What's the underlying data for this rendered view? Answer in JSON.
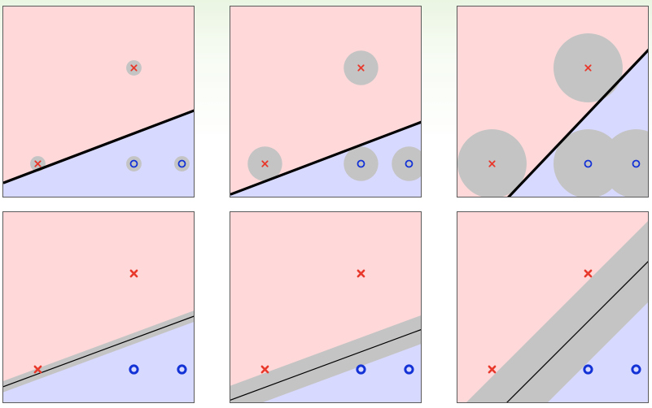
{
  "colors": {
    "class_x_region": "#ffd9d9",
    "class_o_region": "#d8d9ff",
    "margin_gray": "#c4c4c4",
    "x_marker": "#e8392c",
    "o_marker": "#1433d6",
    "boundary": "#000000"
  },
  "points": [
    {
      "label": "x",
      "x": 0.18,
      "y": 0.18
    },
    {
      "label": "x",
      "x": 0.68,
      "y": 0.68
    },
    {
      "label": "o",
      "x": 0.68,
      "y": 0.18
    },
    {
      "label": "o",
      "x": 0.93,
      "y": 0.18
    }
  ],
  "panels": [
    {
      "id": "top-left",
      "style": "circles",
      "circle_radius": 0.04,
      "line": [
        0.0,
        0.08,
        1.0,
        0.46
      ],
      "marker": "thin"
    },
    {
      "id": "top-middle",
      "style": "circles",
      "circle_radius": 0.09,
      "line": [
        0.0,
        0.02,
        1.0,
        0.4
      ],
      "marker": "thin"
    },
    {
      "id": "top-right",
      "style": "circles",
      "circle_radius": 0.18,
      "line": [
        0.26,
        0.0,
        1.0,
        0.78
      ],
      "marker": "thin"
    },
    {
      "id": "bottom-left",
      "style": "band",
      "band_width": 0.055,
      "line": [
        0.0,
        0.09,
        1.0,
        0.46
      ],
      "marker": "thick"
    },
    {
      "id": "bottom-middle",
      "style": "band",
      "band_width": 0.14,
      "line": [
        0.0,
        0.02,
        1.0,
        0.39
      ],
      "marker": "thick"
    },
    {
      "id": "bottom-right",
      "style": "band",
      "band_width": 0.3,
      "line": [
        0.25,
        0.0,
        1.0,
        0.75
      ],
      "marker": "thick"
    }
  ]
}
